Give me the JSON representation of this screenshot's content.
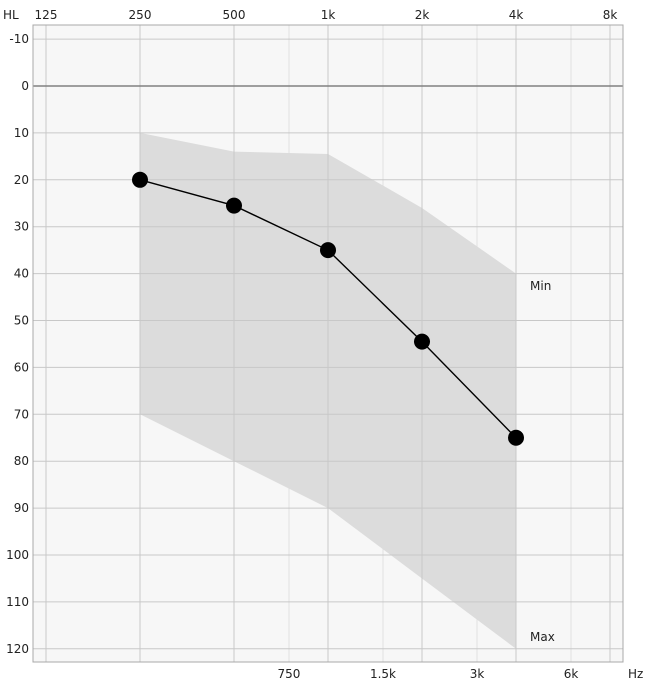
{
  "chart_data": {
    "type": "line",
    "title": "",
    "xlabel": "",
    "ylabel": "",
    "x_scale": "log",
    "y_inverted": true,
    "axis_labels": {
      "y_unit": "HL",
      "x_unit": "Hz"
    },
    "top_ticks": [
      {
        "label": "125",
        "hz": 125
      },
      {
        "label": "250",
        "hz": 250
      },
      {
        "label": "500",
        "hz": 500
      },
      {
        "label": "1k",
        "hz": 1000
      },
      {
        "label": "2k",
        "hz": 2000
      },
      {
        "label": "4k",
        "hz": 4000
      },
      {
        "label": "8k",
        "hz": 8000
      }
    ],
    "bottom_ticks": [
      {
        "label": "750",
        "hz": 750
      },
      {
        "label": "1.5k",
        "hz": 1500
      },
      {
        "label": "3k",
        "hz": 3000
      },
      {
        "label": "6k",
        "hz": 6000
      }
    ],
    "y_ticks": [
      -10,
      0,
      10,
      20,
      30,
      40,
      50,
      60,
      70,
      80,
      90,
      100,
      110,
      120
    ],
    "ylim": [
      -10,
      120
    ],
    "grid": true,
    "range_band": {
      "min_label": "Min",
      "max_label": "Max",
      "color": "#dcdcdc",
      "min": [
        {
          "hz": 250,
          "db": 10
        },
        {
          "hz": 500,
          "db": 14
        },
        {
          "hz": 1000,
          "db": 14.5
        },
        {
          "hz": 2000,
          "db": 26
        },
        {
          "hz": 4000,
          "db": 40
        }
      ],
      "max": [
        {
          "hz": 250,
          "db": 70
        },
        {
          "hz": 500,
          "db": 80
        },
        {
          "hz": 1000,
          "db": 90
        },
        {
          "hz": 2000,
          "db": 105
        },
        {
          "hz": 4000,
          "db": 120
        }
      ]
    },
    "series": [
      {
        "color": "#000000",
        "points": [
          {
            "hz": 250,
            "db": 20
          },
          {
            "hz": 500,
            "db": 25.5
          },
          {
            "hz": 1000,
            "db": 35
          },
          {
            "hz": 2000,
            "db": 54.5
          },
          {
            "hz": 4000,
            "db": 75
          }
        ]
      }
    ],
    "colors": {
      "grid_major": "#c8c8c8",
      "grid_minor": "#e0e0e0",
      "zero_line": "#808080",
      "frame": "#a8a8a8",
      "plot_bg": "#f7f7f7"
    }
  }
}
